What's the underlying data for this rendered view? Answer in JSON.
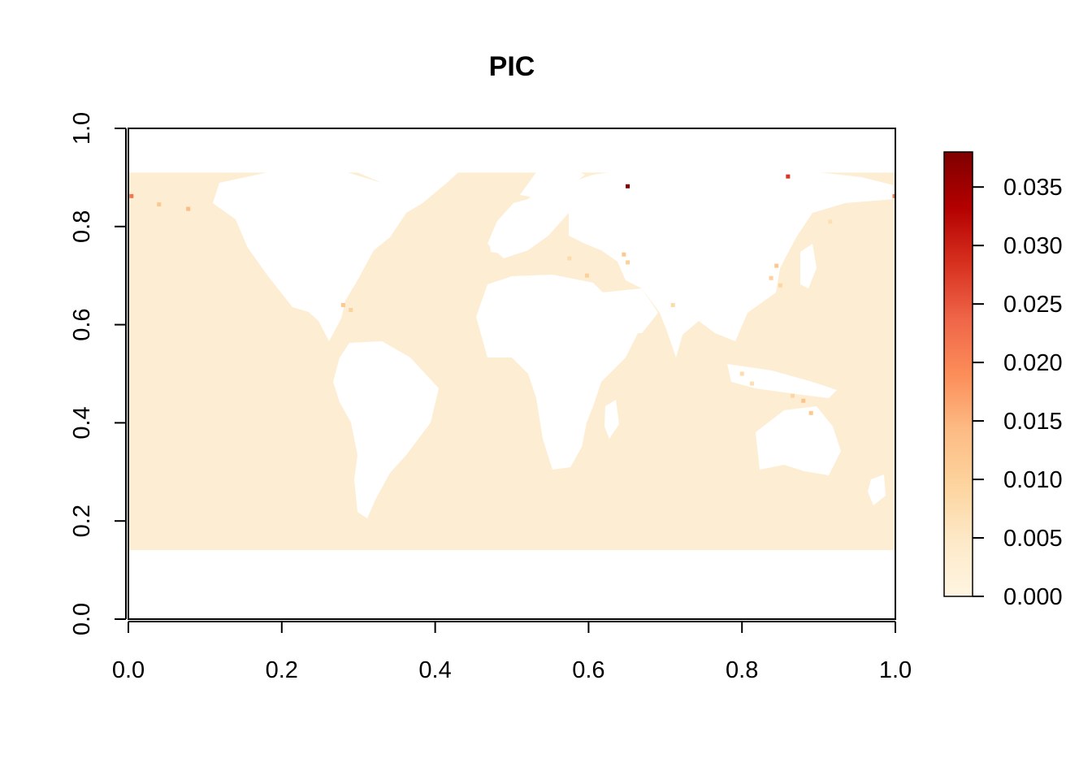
{
  "chart_data": {
    "type": "heatmap",
    "title": "PIC",
    "xlabel": "",
    "ylabel": "",
    "xlim": [
      0,
      1
    ],
    "ylim": [
      0,
      1
    ],
    "x_ticks": [
      "0.0",
      "0.2",
      "0.4",
      "0.6",
      "0.8",
      "1.0"
    ],
    "y_ticks": [
      "0.0",
      "0.2",
      "0.4",
      "0.6",
      "0.8",
      "1.0"
    ],
    "grid": false,
    "legend": {
      "type": "colorbar",
      "placement": "right",
      "range": [
        0,
        0.038
      ],
      "ticks": [
        0.0,
        0.005,
        0.01,
        0.015,
        0.02,
        0.025,
        0.03,
        0.035
      ],
      "tick_labels": [
        "0.000",
        "0.005",
        "0.010",
        "0.015",
        "0.020",
        "0.025",
        "0.030",
        "0.035"
      ],
      "colors": [
        "#fff5e2",
        "#fde9c8",
        "#fdd49e",
        "#fdbb84",
        "#fc8d59",
        "#ef6548",
        "#d7301f",
        "#b30000",
        "#7f0000"
      ]
    },
    "ocean_value": 0.001,
    "ocean_color": "#fdeed3",
    "land_color": "#ffffff",
    "data_lat_extent": [
      0.14,
      0.91
    ],
    "hotspots": [
      {
        "x": 0.651,
        "y": 0.882,
        "value": 0.038
      },
      {
        "x": 0.86,
        "y": 0.902,
        "value": 0.028
      },
      {
        "x": 0.004,
        "y": 0.862,
        "value": 0.022
      },
      {
        "x": 0.999,
        "y": 0.862,
        "value": 0.022
      },
      {
        "x": 0.04,
        "y": 0.845,
        "value": 0.012
      },
      {
        "x": 0.078,
        "y": 0.836,
        "value": 0.014
      },
      {
        "x": 0.28,
        "y": 0.64,
        "value": 0.012
      },
      {
        "x": 0.29,
        "y": 0.63,
        "value": 0.01
      },
      {
        "x": 0.598,
        "y": 0.7,
        "value": 0.01
      },
      {
        "x": 0.646,
        "y": 0.743,
        "value": 0.012
      },
      {
        "x": 0.651,
        "y": 0.727,
        "value": 0.01
      },
      {
        "x": 0.575,
        "y": 0.735,
        "value": 0.008
      },
      {
        "x": 0.71,
        "y": 0.64,
        "value": 0.008
      },
      {
        "x": 0.845,
        "y": 0.72,
        "value": 0.012
      },
      {
        "x": 0.838,
        "y": 0.695,
        "value": 0.01
      },
      {
        "x": 0.85,
        "y": 0.68,
        "value": 0.009
      },
      {
        "x": 0.88,
        "y": 0.445,
        "value": 0.013
      },
      {
        "x": 0.89,
        "y": 0.42,
        "value": 0.012
      },
      {
        "x": 0.866,
        "y": 0.455,
        "value": 0.009
      },
      {
        "x": 0.8,
        "y": 0.5,
        "value": 0.008
      },
      {
        "x": 0.813,
        "y": 0.48,
        "value": 0.007
      },
      {
        "x": 0.915,
        "y": 0.81,
        "value": 0.007
      }
    ]
  }
}
